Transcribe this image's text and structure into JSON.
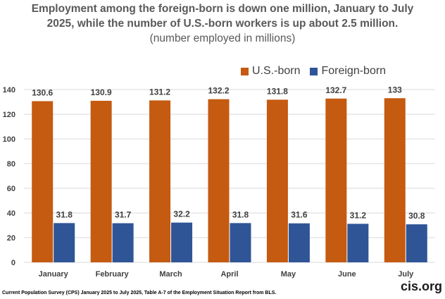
{
  "title": {
    "line1": "Employment among the foreign-born is down one million, January to July",
    "line2": "2025, while the number of U.S.-born workers is up about 2.5 million.",
    "subtitle": "(number employed in millions)"
  },
  "footer": {
    "source": "Current Population Survey (CPS) January 2025 to July 2025, Table A-7 of the Employment Situation Report from BLS.",
    "brand": "cis.org"
  },
  "colors": {
    "us_born": "#c55a11",
    "foreign_born": "#2f5597"
  },
  "chart_data": {
    "type": "bar",
    "title": "Employment among the foreign-born is down one million, January to July 2025, while the number of U.S.-born workers is up about 2.5 million.",
    "subtitle": "(number employed in millions)",
    "categories": [
      "January",
      "February",
      "March",
      "April",
      "May",
      "June",
      "July"
    ],
    "series": [
      {
        "name": "U.S.-born",
        "values": [
          130.6,
          130.9,
          131.2,
          132.2,
          131.8,
          132.7,
          133
        ],
        "labels": [
          "130.6",
          "130.9",
          "131.2",
          "132.2",
          "131.8",
          "132.7",
          "133"
        ]
      },
      {
        "name": "Foreign-born",
        "values": [
          31.8,
          31.7,
          32.2,
          31.8,
          31.6,
          31.2,
          30.8
        ],
        "labels": [
          "31.8",
          "31.7",
          "32.2",
          "31.8",
          "31.6",
          "31.2",
          "30.8"
        ]
      }
    ],
    "ylim": [
      0,
      140
    ],
    "yticks": [
      "0",
      "20",
      "40",
      "60",
      "80",
      "100",
      "120",
      "140"
    ],
    "xlabel": "",
    "ylabel": "",
    "legend": "top-right",
    "grid": true
  }
}
